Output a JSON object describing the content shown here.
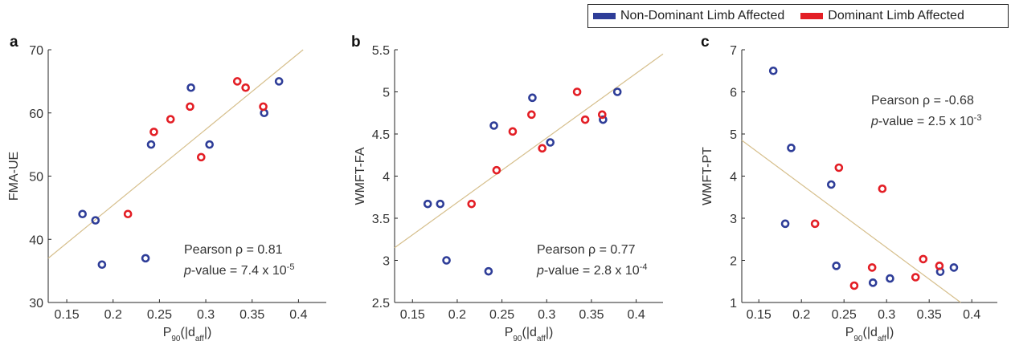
{
  "legend": {
    "items": [
      {
        "label": "Non-Dominant Limb Affected",
        "color": "#2e3d98"
      },
      {
        "label": "Dominant Limb Affected",
        "color": "#e31e25"
      }
    ]
  },
  "colors": {
    "fit_line": "#d6bf8c",
    "axis": "#262626"
  },
  "chart_data": [
    {
      "panel_label": "a",
      "type": "scatter",
      "xlabel": "P90(|daff|)",
      "ylabel": "FMA-UE",
      "xlim": [
        0.13,
        0.43
      ],
      "ylim": [
        30,
        70
      ],
      "xticks": [
        0.15,
        0.2,
        0.25,
        0.3,
        0.35,
        0.4
      ],
      "xtick_labels": [
        "0.15",
        "0.2",
        "0.25",
        "0.3",
        "0.35",
        "0.4"
      ],
      "yticks": [
        30,
        40,
        50,
        60,
        70
      ],
      "ytick_labels": [
        "30",
        "40",
        "50",
        "60",
        "70"
      ],
      "grid": false,
      "annotation": {
        "line1": "Pearson ρ = 0.81",
        "line2_prefix": "p",
        "line2_text": "-value = 7.4 x 10",
        "line2_exp": "-5"
      },
      "fit_line": [
        [
          0.13,
          37.0
        ],
        [
          0.405,
          70.0
        ]
      ],
      "series": [
        {
          "name": "Non-Dominant Limb Affected",
          "x": [
            0.167,
            0.181,
            0.188,
            0.235,
            0.241,
            0.284,
            0.304,
            0.363,
            0.379
          ],
          "y": [
            44,
            43,
            36,
            37,
            55,
            64,
            55,
            60,
            65
          ]
        },
        {
          "name": "Dominant Limb Affected",
          "x": [
            0.216,
            0.244,
            0.262,
            0.283,
            0.295,
            0.334,
            0.343,
            0.362
          ],
          "y": [
            44,
            57,
            59,
            61,
            53,
            65,
            64,
            61
          ]
        }
      ]
    },
    {
      "panel_label": "b",
      "type": "scatter",
      "xlabel": "P90(|daff|)",
      "ylabel": "WMFT-FA",
      "xlim": [
        0.13,
        0.43
      ],
      "ylim": [
        2.5,
        5.5
      ],
      "xticks": [
        0.15,
        0.2,
        0.25,
        0.3,
        0.35,
        0.4
      ],
      "xtick_labels": [
        "0.15",
        "0.2",
        "0.25",
        "0.3",
        "0.35",
        "0.4"
      ],
      "yticks": [
        2.5,
        3,
        3.5,
        4,
        4.5,
        5,
        5.5
      ],
      "ytick_labels": [
        "2.5",
        "3",
        "3.5",
        "4",
        "4.5",
        "5",
        "5.5"
      ],
      "grid": false,
      "annotation": {
        "line1": "Pearson ρ = 0.77",
        "line2_prefix": "p",
        "line2_text": "-value = 2.8 x 10",
        "line2_exp": "-4"
      },
      "fit_line": [
        [
          0.13,
          3.15
        ],
        [
          0.43,
          5.45
        ]
      ],
      "series": [
        {
          "name": "Non-Dominant Limb Affected",
          "x": [
            0.167,
            0.181,
            0.188,
            0.235,
            0.241,
            0.284,
            0.304,
            0.363,
            0.379
          ],
          "y": [
            3.67,
            3.67,
            3.0,
            2.87,
            4.6,
            4.93,
            4.4,
            4.67,
            5.0
          ]
        },
        {
          "name": "Dominant Limb Affected",
          "x": [
            0.216,
            0.244,
            0.262,
            0.283,
            0.295,
            0.334,
            0.343,
            0.362
          ],
          "y": [
            3.67,
            4.07,
            4.53,
            4.73,
            4.33,
            5.0,
            4.67,
            4.73
          ]
        }
      ]
    },
    {
      "panel_label": "c",
      "type": "scatter",
      "xlabel": "P90(|daff|)",
      "ylabel": "WMFT-PT",
      "xlim": [
        0.13,
        0.43
      ],
      "ylim": [
        1,
        7
      ],
      "xticks": [
        0.15,
        0.2,
        0.25,
        0.3,
        0.35,
        0.4
      ],
      "xtick_labels": [
        "0.15",
        "0.2",
        "0.25",
        "0.3",
        "0.35",
        "0.4"
      ],
      "yticks": [
        1,
        2,
        3,
        4,
        5,
        6,
        7
      ],
      "ytick_labels": [
        "1",
        "2",
        "3",
        "4",
        "5",
        "6",
        "7"
      ],
      "grid": false,
      "annotation": {
        "line1": "Pearson ρ = -0.68",
        "line2_prefix": "p",
        "line2_text": "-value = 2.5 x 10",
        "line2_exp": "-3"
      },
      "fit_line": [
        [
          0.13,
          4.85
        ],
        [
          0.387,
          1.0
        ]
      ],
      "series": [
        {
          "name": "Non-Dominant Limb Affected",
          "x": [
            0.167,
            0.181,
            0.188,
            0.235,
            0.241,
            0.284,
            0.304,
            0.363,
            0.379
          ],
          "y": [
            6.5,
            2.87,
            4.67,
            3.8,
            1.87,
            1.47,
            1.57,
            1.73,
            1.83
          ]
        },
        {
          "name": "Dominant Limb Affected",
          "x": [
            0.216,
            0.244,
            0.262,
            0.283,
            0.295,
            0.334,
            0.343,
            0.362
          ],
          "y": [
            2.87,
            4.2,
            1.4,
            1.83,
            3.7,
            1.6,
            2.03,
            1.87
          ]
        }
      ]
    }
  ]
}
